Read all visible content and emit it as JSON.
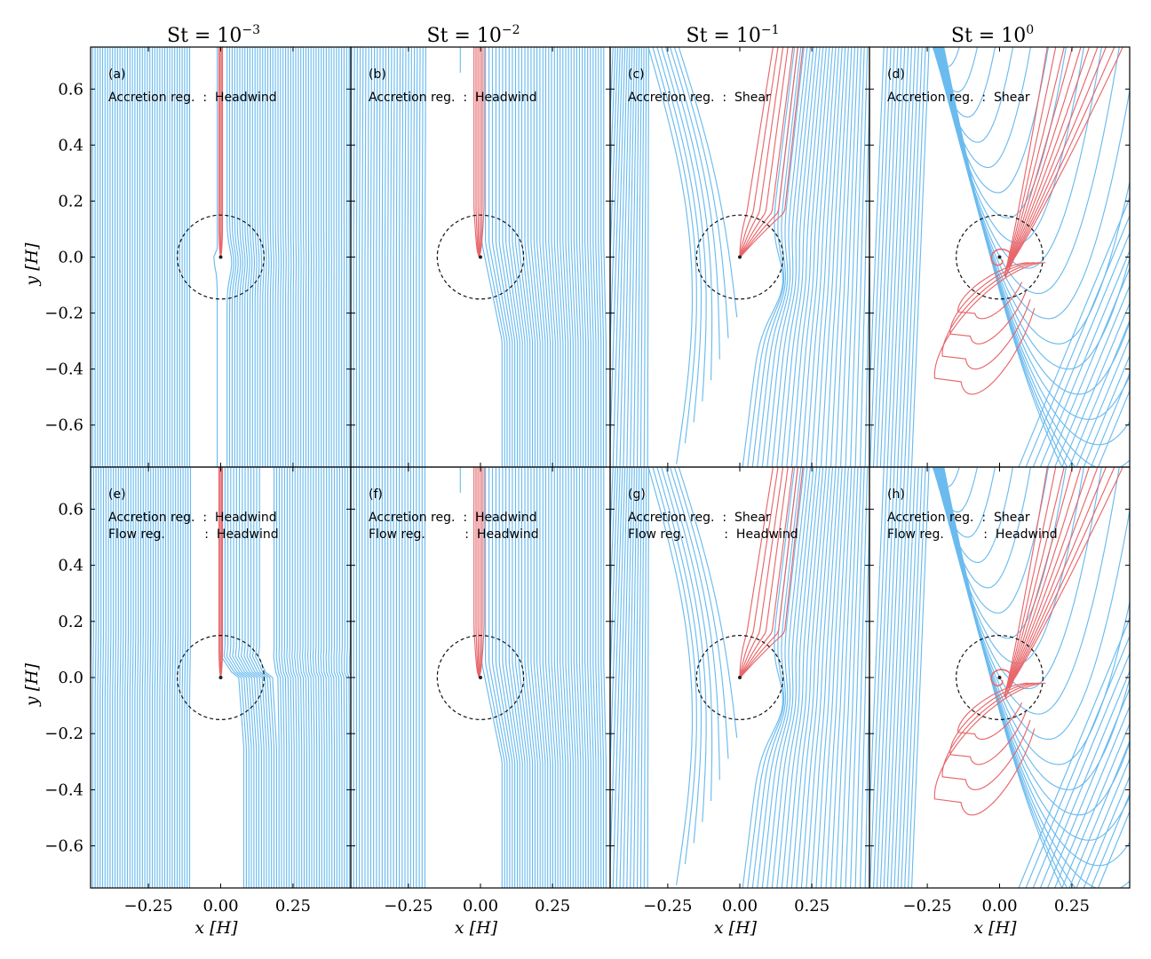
{
  "chart_data": {
    "type": "line",
    "figure_description_text": {
      "x_unit_label": "x [H]",
      "y_unit_label": "y [H]"
    },
    "columns": [
      {
        "title_prefix": "St = 10",
        "exponent": "−3",
        "stokes_number": 0.001,
        "accretion_regime": "Headwind"
      },
      {
        "title_prefix": "St = 10",
        "exponent": "−2",
        "stokes_number": 0.01,
        "accretion_regime": "Headwind"
      },
      {
        "title_prefix": "St = 10",
        "exponent": "−1",
        "stokes_number": 0.1,
        "accretion_regime": "Shear"
      },
      {
        "title_prefix": "St = 10",
        "exponent": "0",
        "stokes_number": 1,
        "accretion_regime": "Shear"
      }
    ],
    "panels": [
      {
        "id": "(a)",
        "row": 0,
        "col": 0,
        "line1": "Accretion reg.  :  Headwind",
        "line2": ""
      },
      {
        "id": "(b)",
        "row": 0,
        "col": 1,
        "line1": "Accretion reg.  :  Headwind",
        "line2": ""
      },
      {
        "id": "(c)",
        "row": 0,
        "col": 2,
        "line1": "Accretion reg.  :  Shear",
        "line2": ""
      },
      {
        "id": "(d)",
        "row": 0,
        "col": 3,
        "line1": "Accretion reg.  :  Shear",
        "line2": ""
      },
      {
        "id": "(e)",
        "row": 1,
        "col": 0,
        "line1": "Accretion reg.  :  Headwind",
        "line2": "Flow reg.          :  Headwind"
      },
      {
        "id": "(f)",
        "row": 1,
        "col": 1,
        "line1": "Accretion reg.  :  Headwind",
        "line2": "Flow reg.          :  Headwind"
      },
      {
        "id": "(g)",
        "row": 1,
        "col": 2,
        "line1": "Accretion reg.  :  Shear",
        "line2": "Flow reg.          :  Headwind"
      },
      {
        "id": "(h)",
        "row": 1,
        "col": 3,
        "line1": "Accretion reg.  :  Shear",
        "line2": "Flow reg.          :  Headwind"
      }
    ],
    "xlabel": "x [H]",
    "ylabel": "y [H]",
    "xlim": [
      -0.45,
      0.45
    ],
    "ylim": [
      -0.75,
      0.75
    ],
    "xticks": [
      -0.25,
      0.0,
      0.25
    ],
    "xtick_labels": [
      "−0.25",
      "0.00",
      "0.25"
    ],
    "yticks": [
      0.6,
      0.4,
      0.2,
      0.0,
      -0.2,
      -0.4,
      -0.6
    ],
    "ytick_labels": [
      "0.6",
      "0.4",
      "0.2",
      "0.0",
      "−0.2",
      "−0.4",
      "−0.6"
    ],
    "hill_radius_circle": {
      "center": [
        0.0,
        0.0
      ],
      "radius": 0.15,
      "style": "dashed"
    },
    "series": [
      {
        "name": "non-accreted streamlines",
        "color": "#6bbbef"
      },
      {
        "name": "accreted streamlines",
        "color": "#e8676b"
      }
    ]
  }
}
